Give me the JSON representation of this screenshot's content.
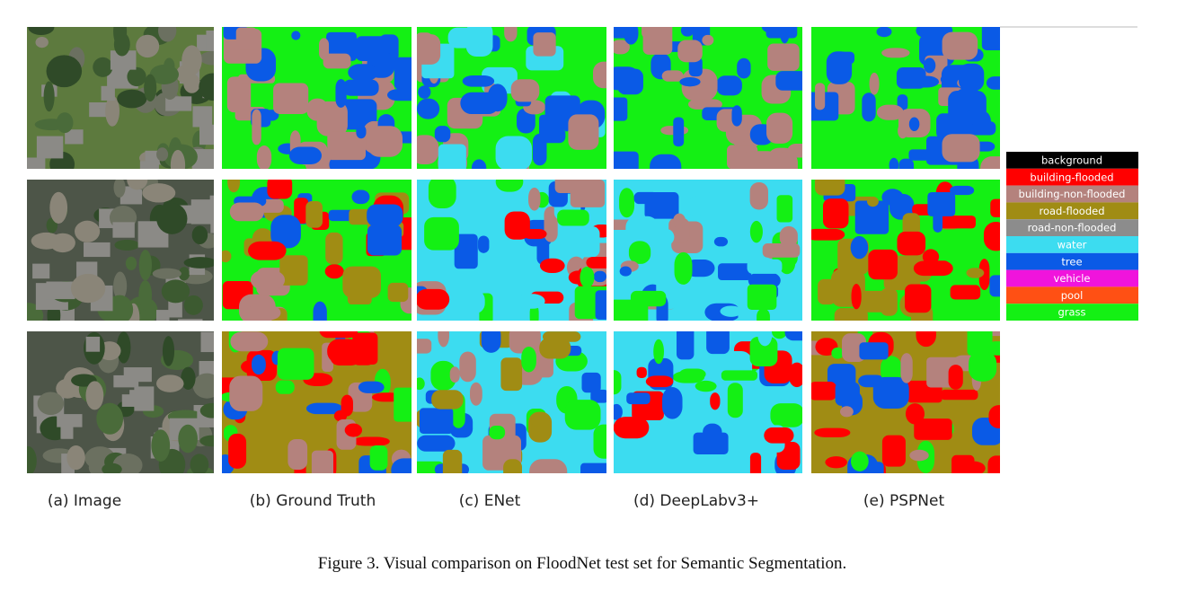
{
  "columns": [
    "(a) Image",
    "(b) Ground Truth",
    "(c) ENet",
    "(d) DeepLabv3+",
    "(e) PSPNet"
  ],
  "legend": [
    {
      "label": "background",
      "color": "#000000"
    },
    {
      "label": "building-flooded",
      "color": "#ff0000"
    },
    {
      "label": "building-non-flooded",
      "color": "#b4827d"
    },
    {
      "label": "road-flooded",
      "color": "#a08c14"
    },
    {
      "label": "road-non-flooded",
      "color": "#8c8c8c"
    },
    {
      "label": "water",
      "color": "#3cdcf0"
    },
    {
      "label": "tree",
      "color": "#0a5ae6"
    },
    {
      "label": "vehicle",
      "color": "#f014dc"
    },
    {
      "label": "pool",
      "color": "#ff5014"
    },
    {
      "label": "grass",
      "color": "#14f014"
    }
  ],
  "caption": "Figure 3. Visual comparison on FloodNet test set for Semantic Segmentation."
}
